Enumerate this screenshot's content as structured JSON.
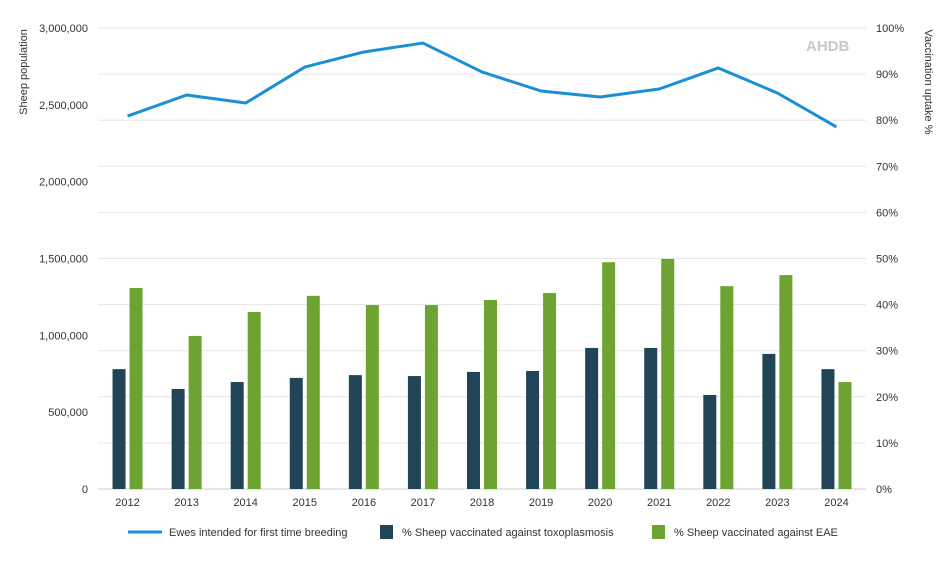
{
  "chart_data": {
    "type": "bar+line",
    "categories": [
      "2012",
      "2013",
      "2014",
      "2015",
      "2016",
      "2017",
      "2018",
      "2019",
      "2020",
      "2021",
      "2022",
      "2023",
      "2024"
    ],
    "y_left": {
      "label": "Sheep population",
      "range": [
        0,
        3000000
      ],
      "ticks": [
        "0",
        "500,000",
        "1,000,000",
        "1,500,000",
        "2,000,000",
        "2,500,000",
        "3,000,000"
      ]
    },
    "y_right": {
      "label": "Vaccination uptake %",
      "range": [
        0,
        100
      ],
      "ticks": [
        "0%",
        "10%",
        "20%",
        "30%",
        "40%",
        "50%",
        "60%",
        "70%",
        "80%",
        "90%",
        "100%"
      ]
    },
    "grid": true,
    "legend_position": "bottom",
    "series": [
      {
        "name": "Ewes intended for first time breeding",
        "type": "line",
        "axis": "left",
        "color": "#1a8fd6",
        "values": [
          2427000,
          2564000,
          2512000,
          2746000,
          2844000,
          2902000,
          2714000,
          2590000,
          2551000,
          2603000,
          2740000,
          2577000,
          2356000
        ]
      },
      {
        "name": "% Sheep vaccinated against toxoplasmosis",
        "type": "bar",
        "axis": "right",
        "color": "#214556",
        "values": [
          26.0,
          21.7,
          23.2,
          24.1,
          24.7,
          24.5,
          25.4,
          25.6,
          30.6,
          30.6,
          20.4,
          29.3,
          26.0
        ]
      },
      {
        "name": "% Sheep vaccinated against EAE",
        "type": "bar",
        "axis": "right",
        "color": "#6da431",
        "values": [
          43.6,
          33.2,
          38.4,
          41.9,
          39.9,
          39.9,
          41.0,
          42.5,
          49.2,
          49.9,
          44.0,
          46.4,
          23.2
        ]
      }
    ]
  },
  "watermark": "AHDB"
}
